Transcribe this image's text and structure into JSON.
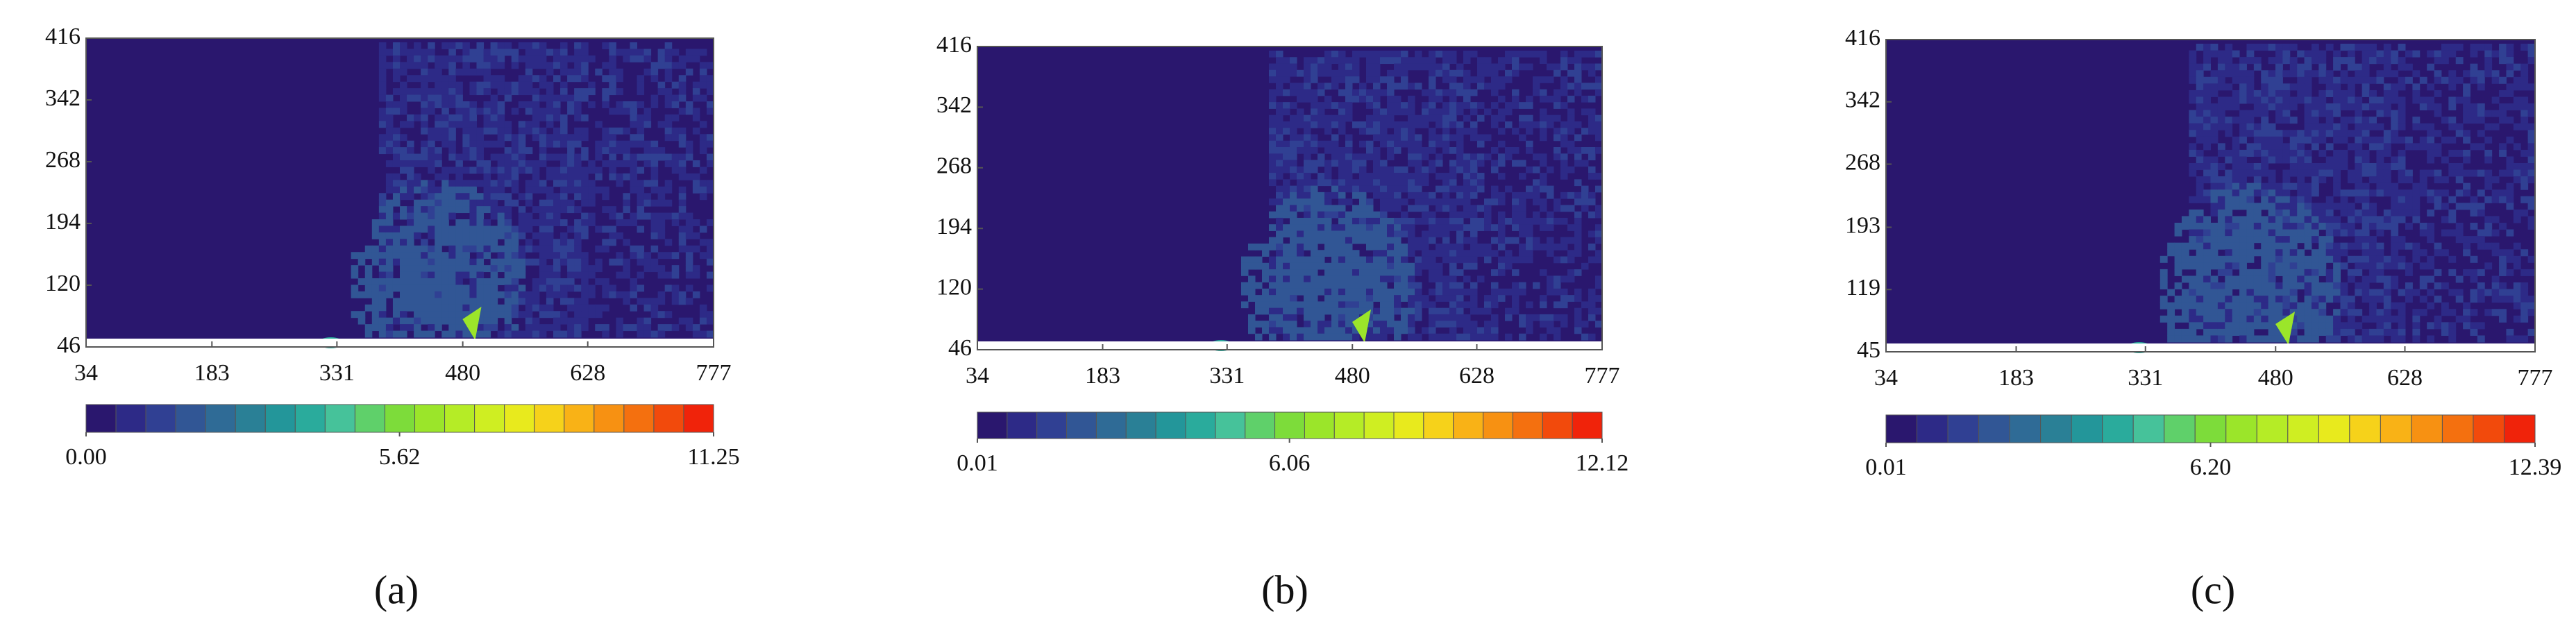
{
  "chart_data": [
    {
      "type": "contour",
      "xlim": [
        34,
        777
      ],
      "xticks": [
        34,
        183,
        331,
        480,
        628,
        777
      ],
      "ylim": [
        46,
        416
      ],
      "yticks": [
        46,
        120,
        194,
        268,
        342,
        416
      ],
      "clim": [
        0,
        11.25
      ],
      "cticks": [
        {
          "value": 0,
          "label": "0.00"
        },
        5.62,
        11.25
      ],
      "caption": "(a)"
    },
    {
      "type": "contour",
      "xlim": [
        34,
        777
      ],
      "xticks": [
        34,
        183,
        331,
        480,
        628,
        777
      ],
      "ylim": [
        46,
        416
      ],
      "yticks": [
        46,
        120,
        194,
        268,
        342,
        416
      ],
      "clim": [
        0.01,
        12.12
      ],
      "cticks": [
        0.01,
        6.06,
        12.12
      ],
      "caption": "(b)"
    },
    {
      "type": "contour",
      "xlim": [
        34,
        777
      ],
      "xticks": [
        34,
        183,
        331,
        480,
        628,
        777
      ],
      "ylim": [
        45,
        416
      ],
      "yticks": [
        45,
        119,
        193,
        268,
        342,
        416
      ],
      "clim": [
        0.01,
        12.39
      ],
      "cticks": [
        0.01,
        {
          "value": 6.2,
          "label": "6.20"
        },
        12.39
      ],
      "caption": "(c)"
    }
  ],
  "colorbar_colors": [
    "#2a176e",
    "#2d2a87",
    "#304093",
    "#315695",
    "#2f6b96",
    "#2a8096",
    "#23969a",
    "#2aab9c",
    "#46c29a",
    "#5fd06a",
    "#7ddc3a",
    "#9be52a",
    "#b5ec26",
    "#cfee22",
    "#e8ea1d",
    "#f6d21a",
    "#f9b216",
    "#f79112",
    "#f4700f",
    "#f24a0c",
    "#f0230a"
  ]
}
